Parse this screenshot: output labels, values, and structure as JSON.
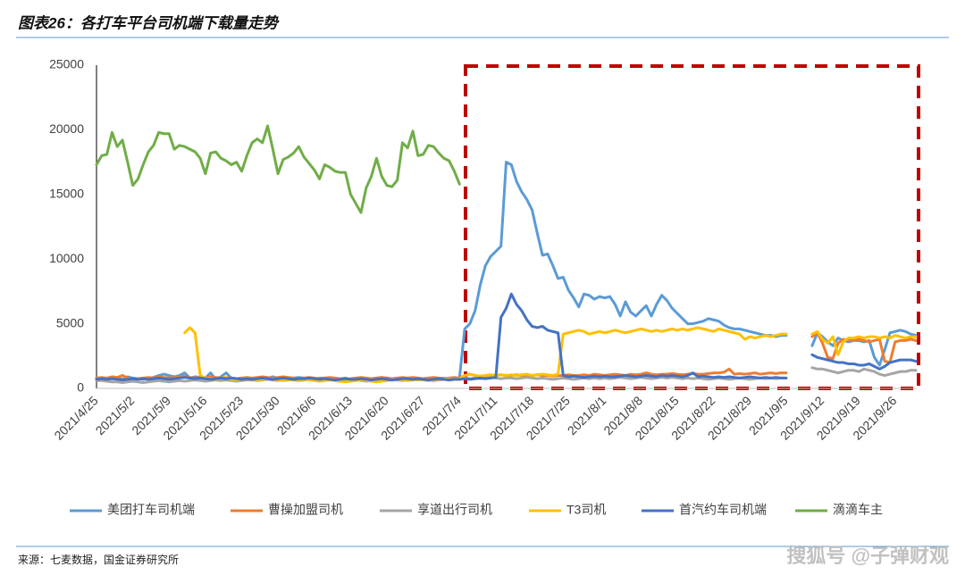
{
  "chart_data": {
    "type": "line",
    "title": "图表26：各打车平台司机端下载量走势",
    "source": "来源：七麦数据，国金证券研究所",
    "categories": [
      "2021/4/25",
      null,
      null,
      null,
      null,
      null,
      null,
      "2021/5/2",
      null,
      null,
      null,
      null,
      null,
      null,
      "2021/5/9",
      null,
      null,
      null,
      null,
      null,
      null,
      "2021/5/16",
      null,
      null,
      null,
      null,
      null,
      null,
      "2021/5/23",
      null,
      null,
      null,
      null,
      null,
      null,
      "2021/5/30",
      null,
      null,
      null,
      null,
      null,
      null,
      "2021/6/6",
      null,
      null,
      null,
      null,
      null,
      null,
      "2021/6/13",
      null,
      null,
      null,
      null,
      null,
      null,
      "2021/6/20",
      null,
      null,
      null,
      null,
      null,
      null,
      "2021/6/27",
      null,
      null,
      null,
      null,
      null,
      null,
      "2021/7/4",
      null,
      null,
      null,
      null,
      null,
      null,
      "2021/7/11",
      null,
      null,
      null,
      null,
      null,
      null,
      "2021/7/18",
      null,
      null,
      null,
      null,
      null,
      null,
      "2021/7/25",
      null,
      null,
      null,
      null,
      null,
      null,
      "2021/8/1",
      null,
      null,
      null,
      null,
      null,
      null,
      "2021/8/8",
      null,
      null,
      null,
      null,
      null,
      null,
      "2021/8/15",
      null,
      null,
      null,
      null,
      null,
      null,
      "2021/8/22",
      null,
      null,
      null,
      null,
      null,
      null,
      "2021/8/29",
      null,
      null,
      null,
      null,
      null,
      null,
      "2021/9/5",
      null,
      null,
      null,
      null,
      null,
      null,
      "2021/9/12",
      null,
      null,
      null,
      null,
      null,
      null,
      "2021/9/19",
      null,
      null,
      null,
      null,
      null,
      null,
      "2021/9/26",
      null,
      null,
      null,
      null
    ],
    "ylim": [
      0,
      25000
    ],
    "yticks": [
      0,
      5000,
      10000,
      15000,
      20000,
      25000
    ],
    "grid": false,
    "legend": "bottom",
    "series": [
      {
        "name": "美团打车司机端",
        "color": "#5b9bd5",
        "values": [
          800,
          800,
          750,
          800,
          850,
          700,
          900,
          800,
          750,
          700,
          800,
          850,
          1000,
          1100,
          1000,
          900,
          1000,
          1200,
          800,
          900,
          850,
          800,
          1200,
          700,
          900,
          1200,
          800,
          750,
          800,
          750,
          700,
          800,
          850,
          800,
          900,
          800,
          750,
          700,
          800,
          850,
          800,
          750,
          700,
          800,
          800,
          750,
          700,
          750,
          800,
          700,
          750,
          800,
          700,
          750,
          800,
          850,
          800,
          750,
          800,
          700,
          800,
          750,
          700,
          750,
          800,
          800,
          750,
          800,
          700,
          800,
          800,
          4600,
          5000,
          6000,
          8000,
          9500,
          10200,
          10600,
          11000,
          17500,
          17300,
          16000,
          15200,
          14600,
          13800,
          12000,
          10300,
          10400,
          9500,
          8500,
          8600,
          7600,
          7000,
          6300,
          7300,
          7200,
          6900,
          7100,
          7000,
          7100,
          6500,
          5600,
          6700,
          5900,
          5600,
          6000,
          6400,
          5600,
          6500,
          7200,
          6800,
          6200,
          5800,
          5400,
          5000,
          5000,
          5100,
          5200,
          5400,
          5300,
          5200,
          4900,
          4700,
          4600,
          4600,
          4500,
          4400,
          4300,
          4200,
          4100,
          4100,
          4000,
          4100,
          4100,
          null,
          null,
          null,
          null,
          3300,
          4300,
          4000,
          3600,
          3300,
          3900,
          3700,
          3600,
          3700,
          3700,
          3600,
          3700,
          2400,
          1800,
          3000,
          4300,
          4400,
          4500,
          4400,
          4200,
          4100
        ]
      },
      {
        "name": "曹操加盟司机",
        "color": "#ed7d31",
        "values": [
          800,
          850,
          800,
          900,
          850,
          1000,
          800,
          700,
          750,
          800,
          850,
          800,
          900,
          850,
          800,
          850,
          900,
          950,
          850,
          800,
          850,
          800,
          900,
          850,
          800,
          850,
          800,
          750,
          800,
          850,
          800,
          850,
          900,
          850,
          800,
          850,
          900,
          850,
          800,
          750,
          800,
          850,
          800,
          750,
          800,
          850,
          800,
          750,
          700,
          750,
          800,
          850,
          800,
          750,
          800,
          850,
          800,
          750,
          800,
          850,
          800,
          850,
          800,
          750,
          800,
          850,
          800,
          750,
          800,
          850,
          800,
          1000,
          1100,
          1000,
          900,
          1000,
          950,
          1000,
          1050,
          1000,
          1000,
          1050,
          1000,
          950,
          1000,
          1050,
          1000,
          1000,
          950,
          1000,
          1000,
          1050,
          1000,
          1000,
          1050,
          1000,
          1100,
          1050,
          1000,
          1050,
          1100,
          1050,
          1000,
          1100,
          1050,
          1100,
          1200,
          1100,
          1050,
          1100,
          1100,
          1150,
          1100,
          1050,
          1100,
          1150,
          1100,
          1100,
          1150,
          1200,
          1200,
          1250,
          1500,
          1100,
          1150,
          1100,
          1150,
          1200,
          1100,
          1150,
          1200,
          1150,
          1200,
          1200,
          null,
          null,
          null,
          null,
          4000,
          4300,
          3500,
          2400,
          2300,
          3500,
          3800,
          3700,
          3700,
          3800,
          3700,
          3600,
          3700,
          3800,
          2100,
          2000,
          3600,
          3700,
          3700,
          3800,
          3700
        ]
      },
      {
        "name": "享道出行司机",
        "color": "#a5a5a5",
        "values": [
          600,
          600,
          550,
          500,
          500,
          450,
          500,
          550,
          500,
          450,
          500,
          550,
          600,
          550,
          500,
          550,
          600,
          550,
          600,
          650,
          600,
          550,
          600,
          650,
          600,
          650,
          600,
          550,
          600,
          650,
          650,
          600,
          650,
          700,
          650,
          600,
          650,
          700,
          650,
          600,
          650,
          700,
          650,
          600,
          650,
          700,
          650,
          600,
          550,
          600,
          650,
          600,
          550,
          600,
          650,
          600,
          650,
          700,
          650,
          600,
          650,
          700,
          650,
          700,
          650,
          600,
          650,
          700,
          650,
          700,
          700,
          800,
          750,
          800,
          750,
          800,
          850,
          800,
          750,
          800,
          800,
          750,
          800,
          850,
          800,
          750,
          800,
          750,
          700,
          750,
          800,
          750,
          700,
          750,
          800,
          750,
          800,
          750,
          800,
          750,
          800,
          850,
          800,
          750,
          800,
          850,
          800,
          750,
          800,
          850,
          800,
          850,
          800,
          750,
          800,
          750,
          800,
          750,
          700,
          750,
          800,
          750,
          700,
          750,
          800,
          750,
          700,
          750,
          800,
          750,
          800,
          750,
          800,
          800,
          null,
          null,
          null,
          null,
          1600,
          1500,
          1500,
          1400,
          1300,
          1200,
          1300,
          1400,
          1400,
          1300,
          1500,
          1400,
          1300,
          1100,
          1000,
          1100,
          1200,
          1300,
          1300,
          1400,
          1400
        ]
      },
      {
        "name": "T3司机",
        "color": "#ffc000",
        "values": [
          null,
          null,
          null,
          null,
          null,
          null,
          null,
          null,
          null,
          null,
          null,
          null,
          null,
          null,
          null,
          null,
          null,
          4300,
          4700,
          4300,
          1000,
          800,
          750,
          700,
          800,
          850,
          700,
          650,
          700,
          750,
          700,
          650,
          700,
          750,
          700,
          650,
          600,
          650,
          700,
          650,
          700,
          650,
          600,
          550,
          600,
          650,
          600,
          550,
          500,
          550,
          600,
          650,
          600,
          550,
          500,
          550,
          600,
          650,
          700,
          650,
          600,
          650,
          700,
          650,
          600,
          650,
          700,
          750,
          700,
          700,
          750,
          1000,
          1100,
          1000,
          950,
          1000,
          1050,
          1000,
          1050,
          1000,
          1050,
          1000,
          1050,
          1100,
          1000,
          1050,
          1100,
          1050,
          1000,
          1100,
          4200,
          4300,
          4400,
          4500,
          4400,
          4200,
          4300,
          4400,
          4300,
          4400,
          4500,
          4400,
          4300,
          4400,
          4500,
          4600,
          4500,
          4400,
          4500,
          4400,
          4500,
          4600,
          4500,
          4600,
          4500,
          4600,
          4700,
          4600,
          4500,
          4400,
          4600,
          4500,
          4400,
          4300,
          4200,
          3800,
          4000,
          3900,
          4000,
          4100,
          4000,
          4100,
          4200,
          4200,
          null,
          null,
          null,
          null,
          4200,
          4400,
          3800,
          3500,
          4000,
          2600,
          3600,
          3900,
          3900,
          4000,
          3900,
          4000,
          4000,
          3900,
          4000,
          3900,
          4100,
          4000,
          3900,
          4000,
          4000
        ]
      },
      {
        "name": "首汽约车司机端",
        "color": "#4472c4",
        "values": [
          700,
          750,
          700,
          750,
          700,
          650,
          700,
          750,
          700,
          750,
          700,
          750,
          800,
          750,
          700,
          750,
          800,
          850,
          800,
          750,
          800,
          750,
          700,
          750,
          800,
          750,
          800,
          750,
          700,
          750,
          700,
          750,
          800,
          750,
          700,
          750,
          800,
          750,
          700,
          750,
          750,
          800,
          750,
          700,
          750,
          700,
          650,
          700,
          750,
          700,
          700,
          750,
          700,
          650,
          700,
          750,
          700,
          650,
          700,
          750,
          750,
          700,
          750,
          700,
          650,
          700,
          750,
          700,
          650,
          700,
          700,
          750,
          700,
          750,
          800,
          750,
          800,
          850,
          5500,
          6200,
          7300,
          6500,
          6000,
          5300,
          4800,
          4700,
          4800,
          4500,
          4400,
          4300,
          1000,
          900,
          950,
          900,
          850,
          900,
          950,
          900,
          950,
          900,
          900,
          950,
          1000,
          950,
          900,
          950,
          1000,
          950,
          900,
          1000,
          950,
          1000,
          950,
          900,
          1000,
          1200,
          900,
          950,
          900,
          850,
          900,
          850,
          900,
          850,
          800,
          850,
          900,
          850,
          800,
          850,
          800,
          850,
          800,
          800,
          null,
          null,
          null,
          null,
          2600,
          2400,
          2300,
          2200,
          2100,
          2000,
          2000,
          1900,
          1900,
          1800,
          1800,
          1900,
          1700,
          1500,
          1700,
          2000,
          2100,
          2200,
          2200,
          2200,
          2100
        ]
      },
      {
        "name": "滴滴车主",
        "color": "#70ad47",
        "values": [
          17300,
          18000,
          18100,
          19800,
          18700,
          19200,
          17500,
          15700,
          16200,
          17300,
          18300,
          18800,
          19800,
          19700,
          19700,
          18500,
          18800,
          18700,
          18500,
          18300,
          17800,
          16600,
          18200,
          18300,
          17800,
          17600,
          17300,
          17500,
          16800,
          18000,
          19000,
          19300,
          19000,
          20300,
          18500,
          16600,
          17700,
          17900,
          18200,
          18700,
          17900,
          17400,
          16900,
          16200,
          17300,
          17100,
          16800,
          16700,
          16700,
          15000,
          14300,
          13600,
          15500,
          16400,
          17800,
          16400,
          15700,
          15600,
          16100,
          19000,
          18600,
          19900,
          18000,
          18100,
          18800,
          18700,
          18200,
          17800,
          17600,
          16800,
          15800,
          null,
          null,
          null,
          null,
          null,
          null,
          null,
          null,
          null,
          null,
          null,
          null,
          null,
          null,
          null,
          null,
          null,
          null,
          null,
          null,
          null,
          null,
          null,
          null,
          null,
          null,
          null,
          null,
          null,
          null,
          null,
          null,
          null,
          null,
          null,
          null,
          null,
          null,
          null,
          null,
          null,
          null,
          null,
          null,
          null,
          null,
          null,
          null,
          null,
          null,
          null,
          null,
          null,
          null,
          null,
          null,
          null,
          null,
          null,
          null,
          null,
          null,
          null,
          null,
          null,
          null,
          null,
          null,
          null,
          null,
          null,
          null,
          null,
          null,
          null,
          null,
          null,
          null,
          null,
          null,
          null,
          null,
          null,
          null,
          null,
          null,
          null,
          null
        ]
      }
    ]
  },
  "watermark": "搜狐号 @子弹财观"
}
